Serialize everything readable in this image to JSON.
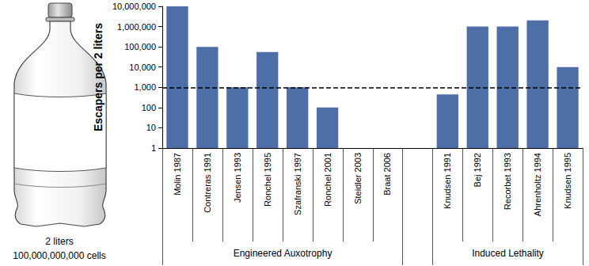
{
  "chart_data": {
    "type": "bar",
    "y_label": "Escapers per 2 liters",
    "categories": [
      "Molin 1987",
      "Contreras 1991",
      "Jensen 1993",
      "Ronchel 1995",
      "Szafranski 1997",
      "Ronchel 2001",
      "Steidler 2003",
      "Braat 2006",
      null,
      "Knudsen 1991",
      "Bej 1992",
      "Recorbet 1993",
      "Ahrenholtz 1994",
      "Knudsen 1995"
    ],
    "values": [
      10000000,
      100000,
      1000,
      55000,
      1000,
      100,
      null,
      null,
      null,
      450,
      1000000,
      1000000,
      2000000,
      10000
    ],
    "color": "#4e6ea8",
    "log": "y",
    "grid": false,
    "ylim": [
      1,
      10000000
    ],
    "yticks": [
      1,
      10,
      100,
      {
        "value": 1000,
        "label": "1,000"
      },
      {
        "value": 10000,
        "label": "10,000"
      },
      {
        "value": 100000,
        "label": "100,000"
      },
      {
        "value": 1000000,
        "label": "1,000,000"
      },
      {
        "value": 10000000,
        "label": "10,000,000"
      }
    ],
    "threshold": {
      "value": 1000,
      "line_style": "dashed"
    },
    "groups": [
      {
        "label": "Engineered Auxotrophy",
        "start": "Molin 1987",
        "end": "Braat 2006"
      },
      {
        "label": "Induced Lethality",
        "start": "Knudsen 1991",
        "end": "Knudsen 1995"
      }
    ],
    "bottle": {
      "volume_label": "2 liters",
      "cells_label": "100,000,000,000 cells"
    }
  }
}
